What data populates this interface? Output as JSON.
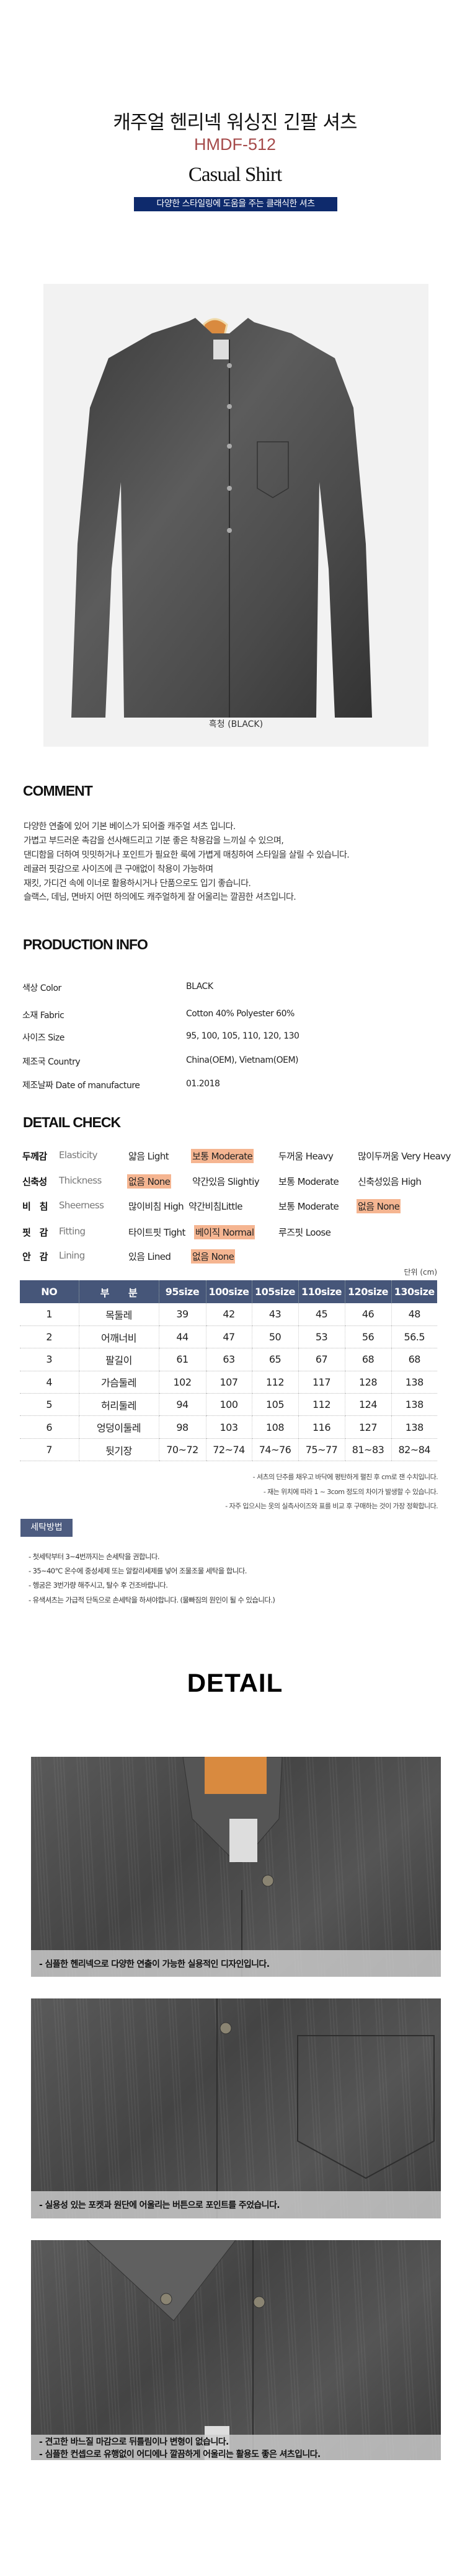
{
  "header": {
    "title": "캐주얼  헨리넥 워싱진 긴팔 셔츠",
    "code": "HMDF-512",
    "subtitle": "Casual Shirt",
    "banner": "다양한 스타일링에 도움을 주는 클래식한 셔츠"
  },
  "hero": {
    "color_caption": "흑청 (BLACK)"
  },
  "comment": {
    "heading": "COMMENT",
    "lines": [
      "다양한 연출에 있어 기본 베이스가 되어줄 캐주얼 셔츠 입니다.",
      "가볍고 부드러운 촉감을 선사해드리고 기분 좋은 착용감을 느끼실 수 있으며,",
      "댄디함을 더하여 밋밋하거나 포인트가 필요한 룩에 가볍게 매칭하여 스타일을 살릴 수 있습니다.",
      "레귤러 핏감으로 사이즈에 큰 구애없이 착용이 가능하며",
      "재킷, 가디건 속에 이너로 활용하시거나 단품으로도 입기 좋습니다.",
      "슬랙스, 데님, 면바지 어떤 하의에도 캐주얼하게 잘 어울리는 깔끔한 셔츠입니다."
    ]
  },
  "production": {
    "heading": "PRODUCTION INFO",
    "rows": [
      {
        "label": "색상 Color",
        "value": "BLACK"
      },
      {
        "label": "소재 Fabric",
        "value": "Cotton 40% Polyester 60%"
      },
      {
        "label": "사이즈 Size",
        "value": "95, 100, 105, 110, 120, 130"
      },
      {
        "label": "제조국 Country",
        "value": "China(OEM), Vietnam(OEM)"
      },
      {
        "label": "제조날짜  Date of manufacture",
        "value": "01.2018"
      }
    ]
  },
  "detail_check": {
    "heading": "DETAIL CHECK",
    "highlight_color": "#f5b591",
    "rows": [
      {
        "label": "두께감",
        "en": "Elasticity",
        "options": [
          "얇음 Light",
          "보통 Moderate",
          "두꺼움 Heavy",
          "많이두꺼움 Very Heavy"
        ],
        "selected": 1
      },
      {
        "label": "신축성",
        "en": "Thickness",
        "options": [
          "없음 None",
          "약간있음 Slightiy",
          "보통 Moderate",
          "신축성있음 High"
        ],
        "selected": 0
      },
      {
        "label": "비　침",
        "en": "Sheerness",
        "options": [
          "많이비침 High",
          "약간비침Little",
          "보통 Moderate",
          "없음 None"
        ],
        "selected": 3
      },
      {
        "label": "핏　감",
        "en": "Fitting",
        "options": [
          "타이트핏 Tight",
          "베이직 Normal",
          "루즈핏 Loose"
        ],
        "selected": 1
      },
      {
        "label": "안　감",
        "en": "Lining",
        "options": [
          "있음 Lined",
          "없음 None"
        ],
        "selected": 1
      }
    ]
  },
  "size_table": {
    "unit": "단위 (cm)",
    "header_color": "#465679",
    "columns": [
      "NO",
      "부　　분",
      "95size",
      "100size",
      "105size",
      "110size",
      "120size",
      "130size"
    ],
    "rows": [
      [
        "1",
        "목둘레",
        "39",
        "42",
        "43",
        "45",
        "46",
        "48"
      ],
      [
        "2",
        "어깨너비",
        "44",
        "47",
        "50",
        "53",
        "56",
        "56.5"
      ],
      [
        "3",
        "팔길이",
        "61",
        "63",
        "65",
        "67",
        "68",
        "68"
      ],
      [
        "4",
        "가슴둘레",
        "102",
        "107",
        "112",
        "117",
        "128",
        "138"
      ],
      [
        "5",
        "허리둘레",
        "94",
        "100",
        "105",
        "112",
        "124",
        "138"
      ],
      [
        "6",
        "엉덩이둘레",
        "98",
        "103",
        "108",
        "116",
        "127",
        "138"
      ],
      [
        "7",
        "뒷기장",
        "70~72",
        "72~74",
        "74~76",
        "75~77",
        "81~83",
        "82~84"
      ]
    ],
    "notes": [
      "- 셔츠의 단추를 채우고 바닥에 평탄하게 펼친 후 cm로 잰 수치입니다.",
      "- 재는 위치에 따라 1 ~ 3com 정도의 차이가 발생할 수 있습니다.",
      "- 자주 입으시는 옷의 실측사이즈와 표를 비교 후 구매하는 것이 가장 정확합니다."
    ]
  },
  "washing": {
    "badge": "세탁방법",
    "lines": [
      "- 첫세탁부터 3~4번까지는 손세탁을 권합니다.",
      "- 35~40℃ 온수에 중성세제 또는 알칼리세제를 넣어 조물조물 세탁을 합니다.",
      "- 헹굼은 3번가량 해주시고, 탈수 후 건조바랍니다.",
      "- 유색셔츠는 가급적 단독으로 손세탁을 하셔야합니다. (물빠짐의 원인이 될 수 있습니다.)"
    ]
  },
  "detail": {
    "heading": "DETAIL",
    "photos": [
      {
        "caption": [
          "- 심플한 헨리넥으로 다양한 연출이 가능한 실용적인 디자인입니다."
        ]
      },
      {
        "caption": [
          "- 실용성 있는 포켓과 원단에 어울리는 버튼으로 포인트를 주었습니다."
        ]
      },
      {
        "caption": [
          "- 견고한 바느질 마감으로 뒤틀림이나 변형이 없습니다.",
          "- 심플한 컨셉으로 유행없이 어디에나 깔끔하게 어울리는 활용도 좋은 셔츠입니다."
        ]
      }
    ]
  }
}
